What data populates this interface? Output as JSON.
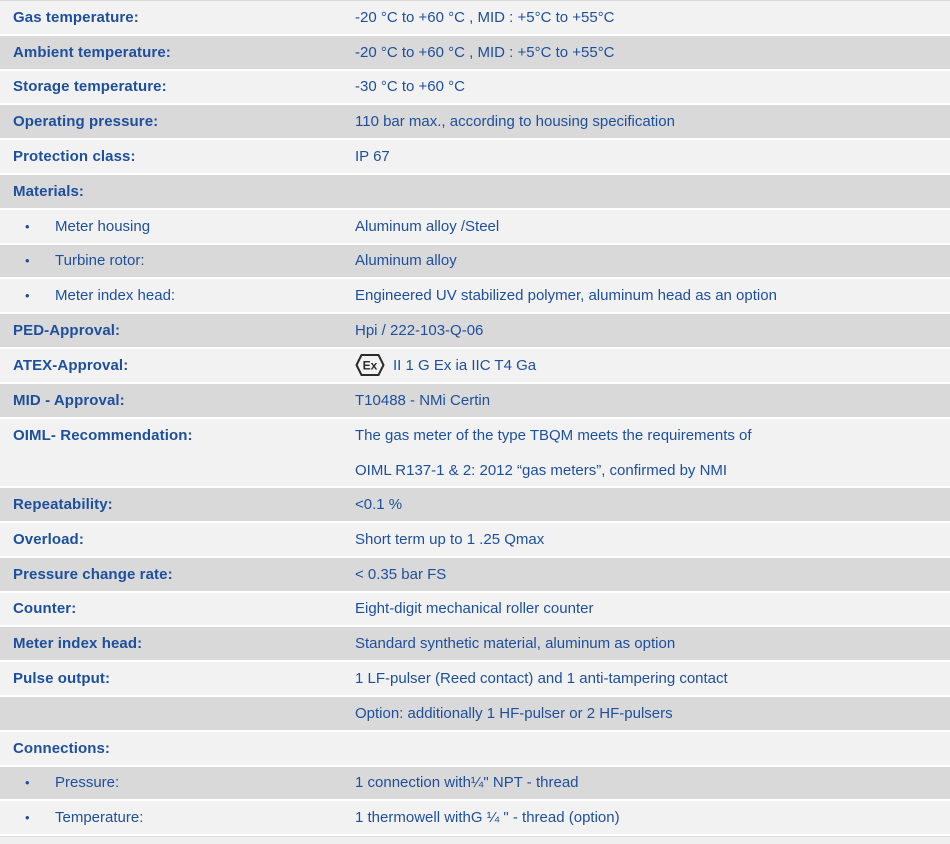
{
  "colors": {
    "text_blue": "#1e4f9c",
    "row_shaded": "#d9d9d9",
    "row_light": "#f2f2f2",
    "separator_white": "#ffffff",
    "icon_dark": "#2b2b2b"
  },
  "icons": {
    "ex_atex_icon_text": "Ex",
    "bullet_glyph": "•"
  },
  "table": {
    "rows": [
      {
        "label": "Gas temperature:",
        "value": "-20 °C to +60 °C , MID : +5°C to +55°C",
        "bullet": false,
        "shaded": false
      },
      {
        "label": "Ambient temperature:",
        "value": "-20 °C to +60 °C , MID : +5°C to +55°C",
        "bullet": false,
        "shaded": true
      },
      {
        "label": "Storage temperature:",
        "value": "-30 °C to +60 °C",
        "bullet": false,
        "shaded": false
      },
      {
        "label": "Operating pressure:",
        "value": "110 bar max., according to housing specification",
        "bullet": false,
        "shaded": true
      },
      {
        "label": "Protection class:",
        "value": "IP 67",
        "bullet": false,
        "shaded": false
      },
      {
        "label": "Materials:",
        "value": "",
        "bullet": false,
        "shaded": true
      },
      {
        "label": "Meter housing",
        "value": "Aluminum alloy /Steel",
        "bullet": true,
        "shaded": false
      },
      {
        "label": "Turbine rotor:",
        "value": "Aluminum alloy",
        "bullet": true,
        "shaded": true
      },
      {
        "label": "Meter index head:",
        "value": "Engineered UV stabilized polymer, aluminum head as an option",
        "bullet": true,
        "shaded": false
      },
      {
        "label": "PED-Approval:",
        "value": "Hpi / 222-103-Q-06",
        "bullet": false,
        "shaded": true
      },
      {
        "label": "ATEX-Approval:",
        "value": "II 1 G Ex ia IIC T4 Ga",
        "bullet": false,
        "shaded": false,
        "icon": "ex-atex-icon"
      },
      {
        "label": "MID - Approval:",
        "value": "T10488 - NMi Certin",
        "bullet": false,
        "shaded": true
      },
      {
        "label": "OIML- Recommendation:",
        "value_lines": [
          "The gas meter of the type TBQM meets the requirements of",
          "OIML R137-1 & 2: 2012 “gas meters”, confirmed by NMI"
        ],
        "bullet": false,
        "shaded": false,
        "tall": true
      },
      {
        "label": "Repeatability:",
        "value": "<0.1 %",
        "bullet": false,
        "shaded": true
      },
      {
        "label": "Overload:",
        "value": "Short term up to 1 .25 Qmax",
        "bullet": false,
        "shaded": false
      },
      {
        "label": "Pressure change rate:",
        "value": "< 0.35 bar FS",
        "bullet": false,
        "shaded": true
      },
      {
        "label": "Counter:",
        "value": "Eight-digit mechanical roller counter",
        "bullet": false,
        "shaded": false
      },
      {
        "label": "Meter index head:",
        "value": "Standard synthetic material, aluminum as option",
        "bullet": false,
        "shaded": true
      },
      {
        "label": "Pulse output:",
        "value": "1 LF-pulser (Reed contact) and 1 anti-tampering contact",
        "bullet": false,
        "shaded": false
      },
      {
        "label": "",
        "value": "Option: additionally 1 HF-pulser or 2 HF-pulsers",
        "bullet": false,
        "shaded": true
      },
      {
        "label": "Connections:",
        "value": "",
        "bullet": false,
        "shaded": false
      },
      {
        "label": "Pressure:",
        "value": "1 connection with¼\" NPT - thread",
        "bullet": true,
        "shaded": true
      },
      {
        "label": "Temperature:",
        "value": "1 thermowell withG ¼ \" - thread (option)",
        "bullet": true,
        "shaded": false
      }
    ]
  }
}
